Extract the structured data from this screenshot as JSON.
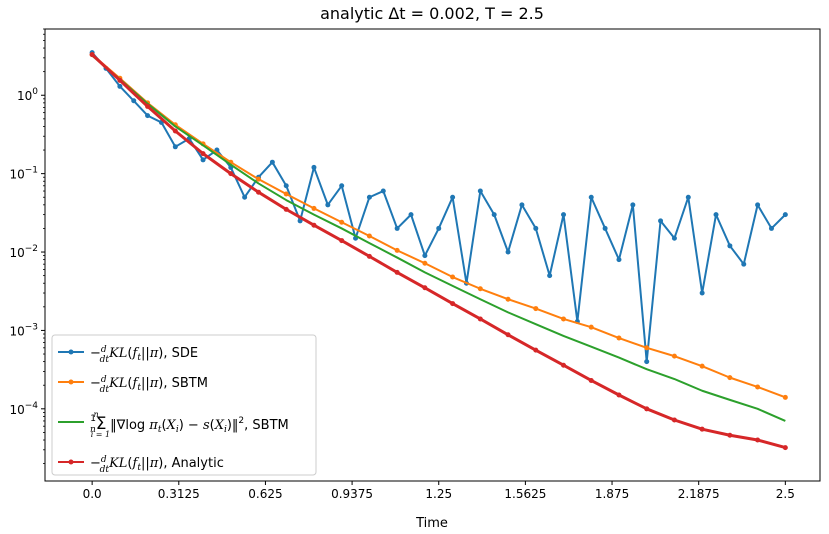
{
  "chart_data": {
    "type": "line",
    "title": "analytic Δt = 0.002, T = 2.5",
    "xlabel": "Time",
    "ylabel": "",
    "yscale": "log",
    "xlim": [
      -0.17,
      2.625
    ],
    "ylim": [
      1.2e-05,
      7.0
    ],
    "x_ticks": [
      0.0,
      0.3125,
      0.625,
      0.9375,
      1.25,
      1.5625,
      1.875,
      2.1875,
      2.5
    ],
    "x_tick_labels": [
      "0.0",
      "0.3125",
      "0.625",
      "0.9375",
      "1.25",
      "1.5625",
      "1.875",
      "2.1875",
      "2.5"
    ],
    "y_ticks": [
      1,
      0.1,
      0.01,
      0.001,
      0.0001
    ],
    "y_tick_labels": [
      {
        "base": "10",
        "exp": "0"
      },
      {
        "base": "10",
        "exp": "−1"
      },
      {
        "base": "10",
        "exp": "−2"
      },
      {
        "base": "10",
        "exp": "−3"
      },
      {
        "base": "10",
        "exp": "−4"
      }
    ],
    "legend_position": "lower-left",
    "series": [
      {
        "name": "−d/dt KL(f_t||π), SDE",
        "color": "#1f77b4",
        "marker": "dot",
        "x": [
          0.0,
          0.05,
          0.1,
          0.15,
          0.2,
          0.25,
          0.3,
          0.35,
          0.4,
          0.45,
          0.5,
          0.55,
          0.6,
          0.65,
          0.7,
          0.75,
          0.8,
          0.85,
          0.9,
          0.95,
          1.0,
          1.05,
          1.1,
          1.15,
          1.2,
          1.25,
          1.3,
          1.35,
          1.4,
          1.45,
          1.5,
          1.55,
          1.6,
          1.65,
          1.7,
          1.75,
          1.8,
          1.85,
          1.9,
          1.95,
          2.0,
          2.05,
          2.1,
          2.15,
          2.2,
          2.25,
          2.3,
          2.35,
          2.4,
          2.45,
          2.5
        ],
        "values": [
          3.5,
          2.2,
          1.3,
          0.85,
          0.55,
          0.45,
          0.22,
          0.28,
          0.15,
          0.2,
          0.12,
          0.05,
          0.09,
          0.14,
          0.07,
          0.025,
          0.12,
          0.04,
          0.07,
          0.015,
          0.05,
          0.06,
          0.02,
          0.03,
          0.009,
          0.02,
          0.05,
          0.004,
          0.06,
          0.03,
          0.01,
          0.04,
          0.02,
          0.005,
          0.03,
          0.0013,
          0.05,
          0.02,
          0.008,
          0.04,
          0.0004,
          0.025,
          0.015,
          0.05,
          0.003,
          0.03,
          0.012,
          0.007,
          0.04,
          0.02,
          0.03
        ]
      },
      {
        "name": "−d/dt KL(f_t||π), SBTM",
        "color": "#ff7f0e",
        "marker": "dot",
        "x": [
          0.0,
          0.1,
          0.2,
          0.3,
          0.4,
          0.5,
          0.6,
          0.7,
          0.8,
          0.9,
          1.0,
          1.1,
          1.2,
          1.3,
          1.4,
          1.5,
          1.6,
          1.7,
          1.8,
          1.9,
          2.0,
          2.1,
          2.2,
          2.3,
          2.4,
          2.5
        ],
        "values": [
          3.3,
          1.65,
          0.8,
          0.42,
          0.24,
          0.14,
          0.085,
          0.055,
          0.036,
          0.024,
          0.016,
          0.0105,
          0.0072,
          0.0048,
          0.0034,
          0.0025,
          0.0019,
          0.0014,
          0.0011,
          0.0008,
          0.0006,
          0.00047,
          0.00035,
          0.00025,
          0.00019,
          0.00014
        ]
      },
      {
        "name": "(1/n) Σ ||∇log π_t(X_i) − s(X_i)||², SBTM",
        "color": "#2ca02c",
        "marker": "none",
        "x": [
          0.0,
          0.1,
          0.2,
          0.3,
          0.4,
          0.5,
          0.6,
          0.7,
          0.8,
          0.9,
          1.0,
          1.1,
          1.2,
          1.3,
          1.4,
          1.5,
          1.6,
          1.7,
          1.8,
          1.9,
          2.0,
          2.1,
          2.2,
          2.3,
          2.4,
          2.5
        ],
        "values": [
          3.2,
          1.6,
          0.78,
          0.4,
          0.23,
          0.13,
          0.075,
          0.046,
          0.03,
          0.02,
          0.013,
          0.0085,
          0.0055,
          0.0037,
          0.0025,
          0.0017,
          0.0012,
          0.00085,
          0.00062,
          0.00045,
          0.00032,
          0.00024,
          0.00017,
          0.00013,
          0.0001,
          7e-05
        ]
      },
      {
        "name": "−d/dt KL(f_t||π), Analytic",
        "color": "#d62728",
        "marker": "dot",
        "x": [
          0.0,
          0.1,
          0.2,
          0.3,
          0.4,
          0.5,
          0.6,
          0.7,
          0.8,
          0.9,
          1.0,
          1.1,
          1.2,
          1.3,
          1.4,
          1.5,
          1.6,
          1.7,
          1.8,
          1.9,
          2.0,
          2.1,
          2.2,
          2.3,
          2.4,
          2.5
        ],
        "values": [
          3.3,
          1.55,
          0.72,
          0.35,
          0.18,
          0.1,
          0.058,
          0.035,
          0.022,
          0.014,
          0.0088,
          0.0055,
          0.0035,
          0.0022,
          0.0014,
          0.00088,
          0.00056,
          0.00036,
          0.00023,
          0.00015,
          0.0001,
          7.2e-05,
          5.5e-05,
          4.6e-05,
          4e-05,
          3.2e-05
        ]
      }
    ]
  }
}
